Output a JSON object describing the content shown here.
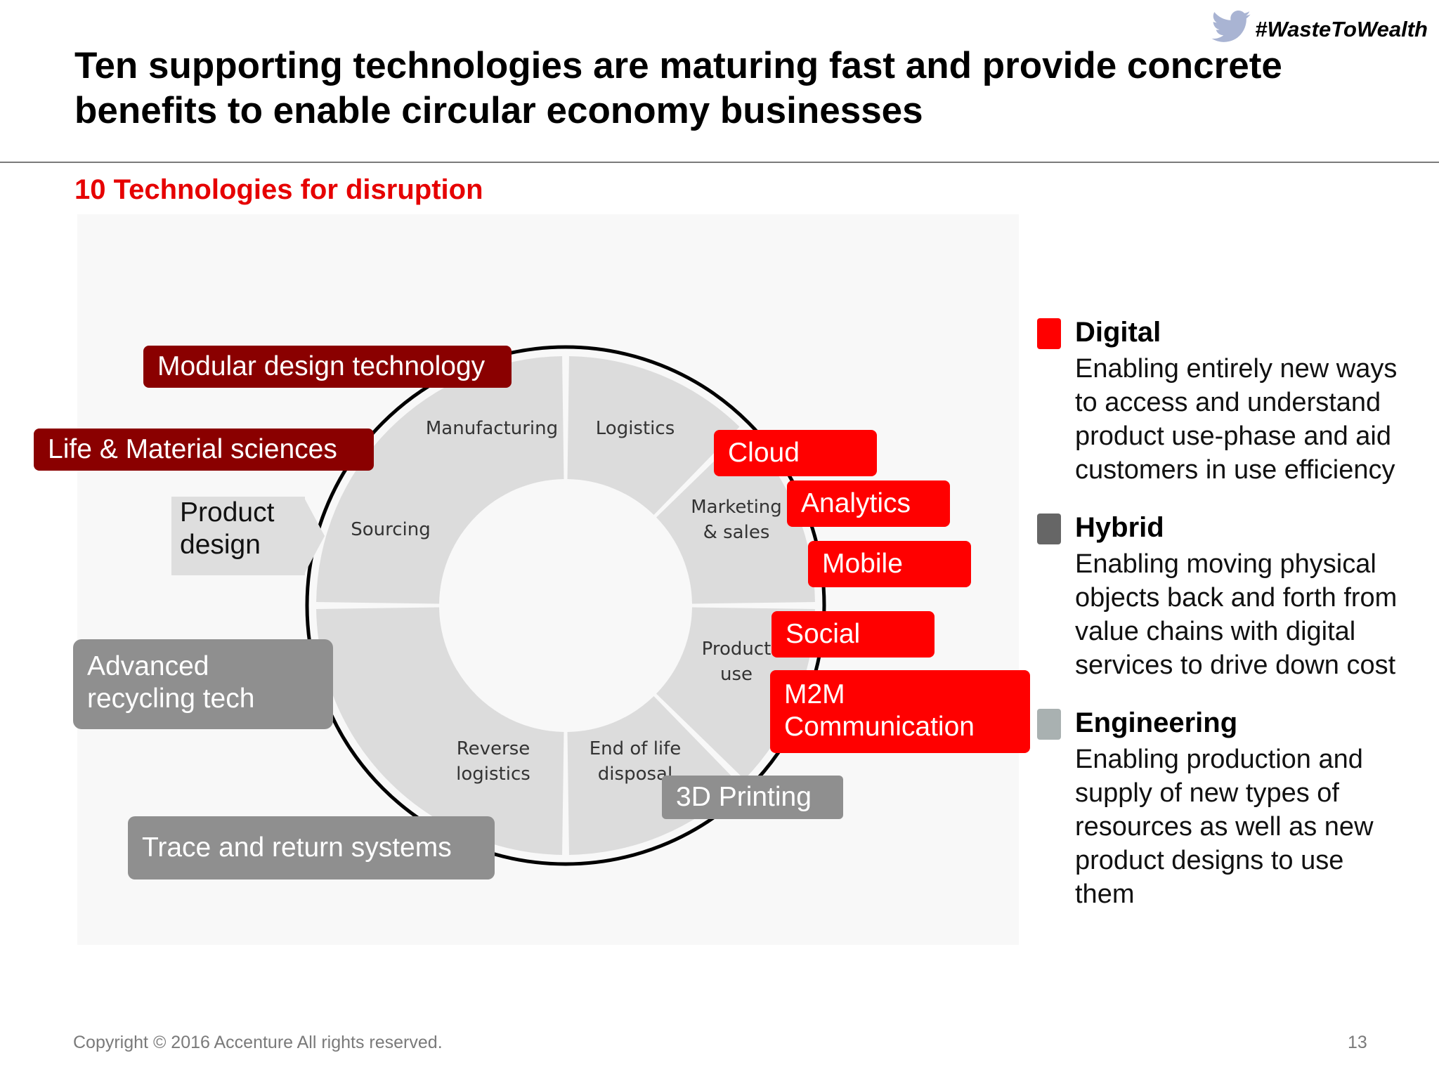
{
  "hashtag": {
    "text": "#WasteToWealth",
    "icon": "twitter-bird-icon",
    "icon_color": "#a9b4d3"
  },
  "title": "Ten supporting technologies are maturing fast and provide concrete benefits to enable circular economy businesses",
  "subtitle": "10 Technologies for disruption",
  "diagram": {
    "segments": [
      {
        "lines": [
          "Manufacturing"
        ]
      },
      {
        "lines": [
          "Logistics"
        ]
      },
      {
        "lines": [
          "Marketing",
          "& sales"
        ]
      },
      {
        "lines": [
          "Product",
          "use"
        ]
      },
      {
        "lines": [
          "End of life",
          "disposal"
        ]
      },
      {
        "lines": [
          "Reverse",
          "logistics"
        ]
      },
      {
        "lines": [
          "Sourcing"
        ]
      }
    ],
    "product_design": [
      "Product",
      "design"
    ],
    "technologies": {
      "modular": "Modular design technology",
      "life_material": "Life & Material sciences",
      "advanced_recycling": [
        "Advanced",
        "recycling tech"
      ],
      "trace_return": "Trace and return systems",
      "cloud": "Cloud",
      "analytics": "Analytics",
      "mobile": "Mobile",
      "social": "Social",
      "m2m": [
        "M2M",
        "Communication"
      ],
      "printing": "3D Printing"
    }
  },
  "legend": [
    {
      "title": "Digital",
      "color": "#ff0000",
      "desc": [
        "Enabling entirely new ways",
        "to access and understand",
        "product use-phase and aid",
        "customers in use efficiency"
      ]
    },
    {
      "title": "Hybrid",
      "color": "#666666",
      "desc": [
        "Enabling moving physical",
        "objects back and forth from",
        "value chains with digital",
        "services to drive down cost"
      ]
    },
    {
      "title": "Engineering",
      "color": "#a9b1b1",
      "desc": [
        "Enabling production and",
        "supply of new types of",
        "resources as well as new",
        "product designs to use",
        "them"
      ]
    }
  ],
  "colors": {
    "digital_tag": "#ff0000",
    "hybrid_tag": "#8a0000",
    "engineering_tag": "#8f8f8f",
    "segment": "#dcdcdc",
    "accent": "#e60000"
  },
  "footer": {
    "copyright": "Copyright © 2016 Accenture  All rights reserved.",
    "page": "13"
  }
}
